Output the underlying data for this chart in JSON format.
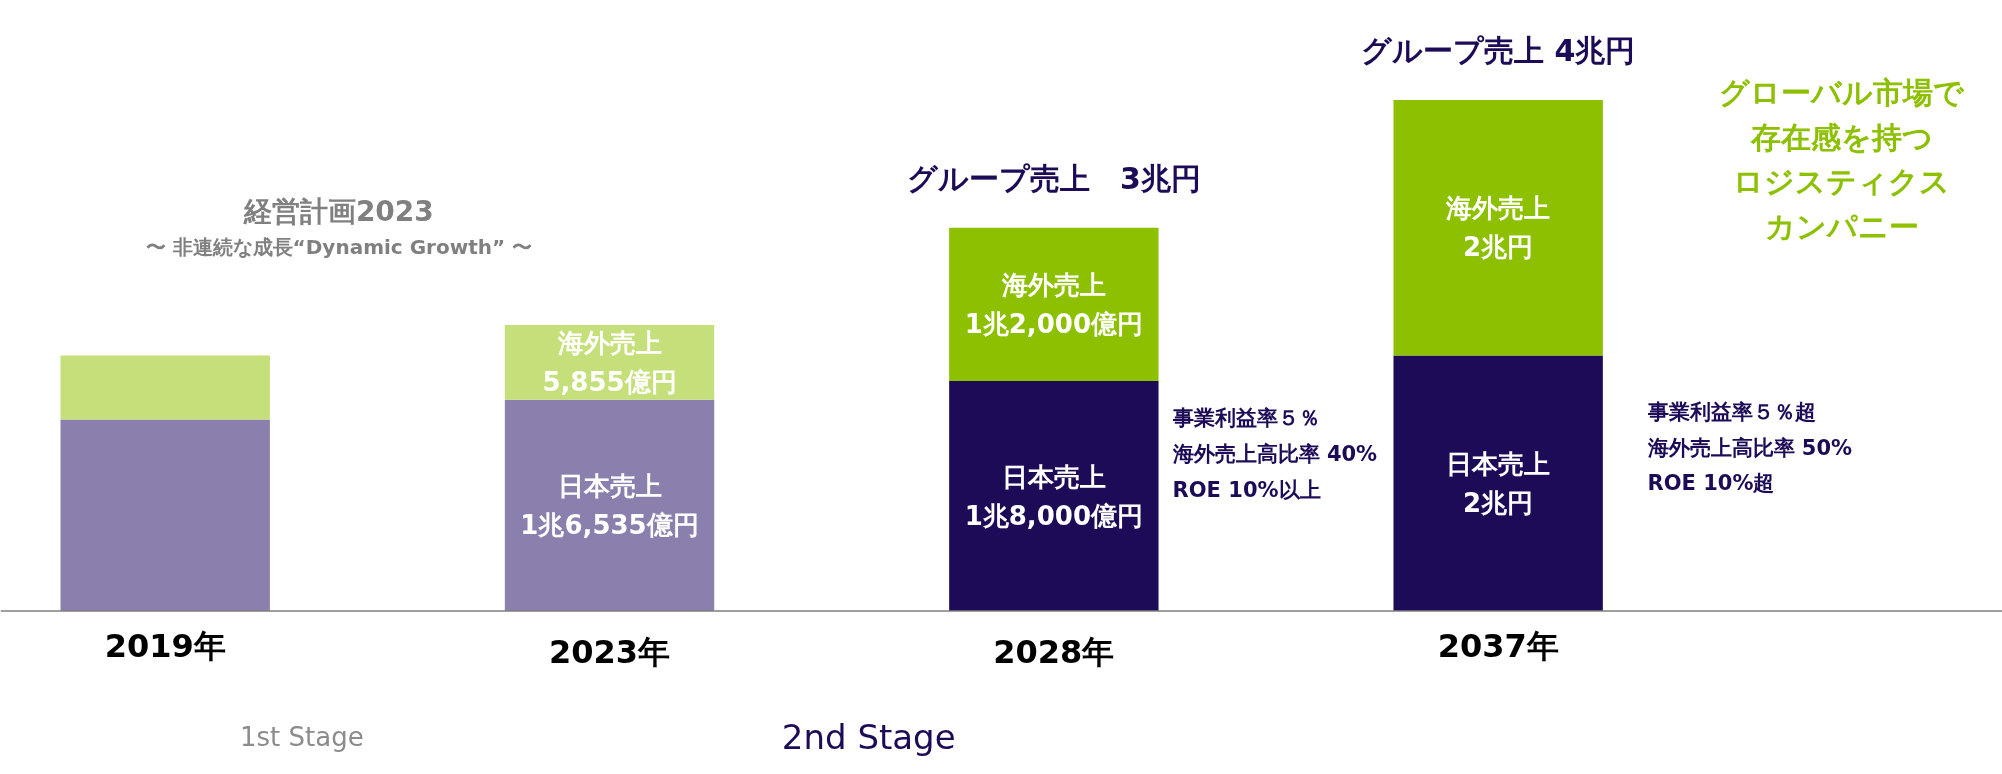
{
  "chart_data": {
    "type": "bar",
    "stacked": true,
    "title": "経営計画2023",
    "subtitle": "〜 非連続な成長“Dynamic Growth” 〜",
    "categories": [
      "2019年",
      "2023年",
      "2028年",
      "2037年"
    ],
    "series": [
      {
        "colors": [
          "#8b7fae",
          "#8b7fae",
          "#1e0b57",
          "#1e0b57"
        ],
        "values": [
          15000,
          16535,
          18000,
          20000
        ],
        "value_labels": [
          null,
          "日本売上\n1兆6,535億円",
          "日本売上\n1兆8,000億円",
          "日本売上\n2兆円"
        ]
      },
      {
        "colors": [
          "#c5df7a",
          "#c5df7a",
          "#8cc000",
          "#8cc000"
        ],
        "values": [
          5000,
          5855,
          12000,
          20000
        ],
        "value_labels": [
          null,
          "海外売上\n5,855億円",
          "海外売上\n1兆2,000億円",
          "海外売上\n2兆円"
        ]
      }
    ],
    "totals": [
      null,
      null,
      "グループ売上　3兆円",
      "グループ売上 4兆円"
    ],
    "ylim": [
      -12800,
      47800
    ],
    "tick_labels": "x",
    "grid": false,
    "annotations": [
      "グローバル市場で",
      "存在感を持つ",
      "ロジスティクス",
      "カンパニー",
      "事業利益率５％",
      "海外売上高比率 40%",
      "ROE 10%以上",
      "事業利益率５％超",
      "海外売上高比率 50%",
      "ROE 10%超",
      "1st Stage",
      "2nd Stage"
    ]
  }
}
